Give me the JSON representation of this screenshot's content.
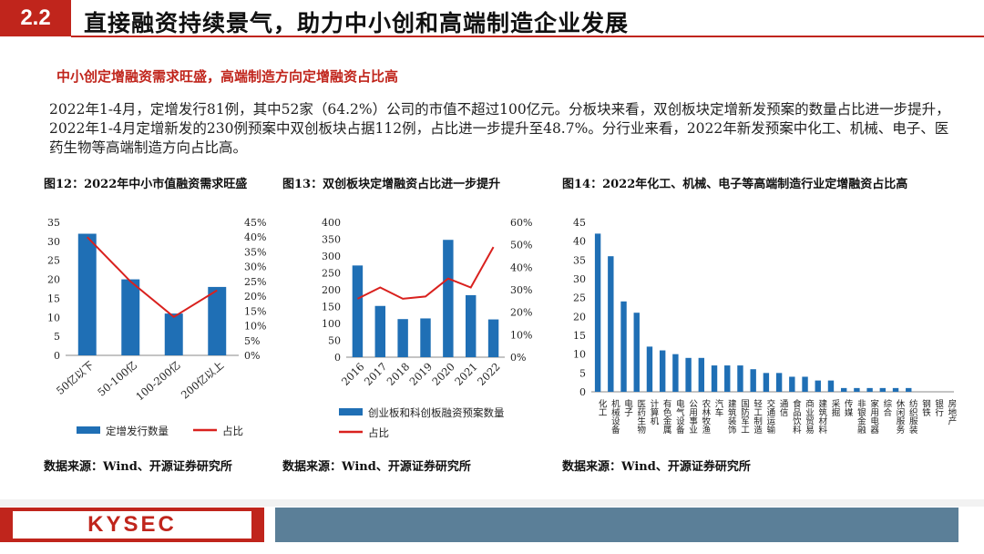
{
  "header": {
    "section_number": "2.2",
    "title": "直接融资持续景气，助力中小创和高端制造企业发展"
  },
  "subtitle": "中小创定增融资需求旺盛，高端制造方向定增融资占比高",
  "paragraph": "2022年1-4月，定增发行81例，其中52家（64.2%）公司的市值不超过100亿元。分板块来看，双创板块定增新发预案的数量占比进一步提升，2022年1-4月定增新发的230例预案中双创板块占据112例，占比进一步提升至48.7%。分行业来看，2022年新发预案中化工、机械、电子、医药生物等高端制造方向占比高。",
  "colors": {
    "bar": "#1f6fb5",
    "line": "#d9211e",
    "accent": "#c0251c",
    "footer_blue": "#5b7f98"
  },
  "footer": {
    "logo": "KYSEC"
  },
  "chart_data": [
    {
      "type": "bar",
      "title": "图12：2022年中小市值融资需求旺盛",
      "categories": [
        "50亿以下",
        "50-100亿",
        "100-200亿",
        "200亿以上"
      ],
      "series": [
        {
          "name": "定增发行数量",
          "type": "bar",
          "axis": "left",
          "values": [
            32,
            20,
            11,
            18
          ]
        },
        {
          "name": "占比",
          "type": "line",
          "axis": "right",
          "values": [
            0.4,
            0.25,
            0.13,
            0.22
          ]
        }
      ],
      "y_left": {
        "min": 0,
        "max": 35,
        "ticks": [
          "0",
          "5",
          "10",
          "15",
          "20",
          "25",
          "30",
          "35"
        ]
      },
      "y_right": {
        "min": 0,
        "max": 0.45,
        "ticks": [
          "0%",
          "5%",
          "10%",
          "15%",
          "20%",
          "25%",
          "30%",
          "35%",
          "40%",
          "45%"
        ]
      },
      "legend": [
        "定增发行数量",
        "占比"
      ],
      "source": "数据来源：Wind、开源证券研究所"
    },
    {
      "type": "bar",
      "title": "图13：双创板块定增融资占比进一步提升",
      "categories": [
        "2016",
        "2017",
        "2018",
        "2019",
        "2020",
        "2021",
        "2022"
      ],
      "series": [
        {
          "name": "创业板和科创板融资预案数量",
          "type": "bar",
          "axis": "left",
          "values": [
            272,
            152,
            113,
            115,
            348,
            184,
            112
          ]
        },
        {
          "name": "占比",
          "type": "line",
          "axis": "right",
          "values": [
            0.26,
            0.31,
            0.26,
            0.27,
            0.35,
            0.31,
            0.49
          ]
        }
      ],
      "y_left": {
        "min": 0,
        "max": 400,
        "ticks": [
          "0",
          "50",
          "100",
          "150",
          "200",
          "250",
          "300",
          "350",
          "400"
        ]
      },
      "y_right": {
        "min": 0,
        "max": 0.6,
        "ticks": [
          "0%",
          "10%",
          "20%",
          "30%",
          "40%",
          "50%",
          "60%"
        ]
      },
      "legend": [
        "创业板和科创板融资预案数量",
        "占比"
      ],
      "source": "数据来源：Wind、开源证券研究所"
    },
    {
      "type": "bar",
      "title": "图14：2022年化工、机械、电子等高端制造行业定增融资占比高",
      "categories": [
        "化工",
        "机械设备",
        "电子",
        "医药生物",
        "计算机",
        "有色金属",
        "电气设备",
        "公用事业",
        "农林牧渔",
        "汽车",
        "建筑装饰",
        "国防军工",
        "轻工制造",
        "交通运输",
        "通信",
        "食品饮料",
        "商业贸易",
        "建筑材料",
        "采掘",
        "传媒",
        "非银金融",
        "家用电器",
        "综合",
        "休闲服务",
        "纺织服装",
        "钢铁",
        "银行",
        "房地产"
      ],
      "values": [
        42,
        36,
        24,
        21,
        12,
        11,
        10,
        9,
        9,
        7,
        7,
        7,
        6,
        5,
        5,
        4,
        4,
        3,
        3,
        1,
        1,
        1,
        1,
        1,
        1,
        0,
        0,
        0
      ],
      "y": {
        "min": 0,
        "max": 45,
        "ticks": [
          "0",
          "5",
          "10",
          "15",
          "20",
          "25",
          "30",
          "35",
          "40",
          "45"
        ]
      },
      "source": "数据来源：Wind、开源证券研究所"
    }
  ]
}
